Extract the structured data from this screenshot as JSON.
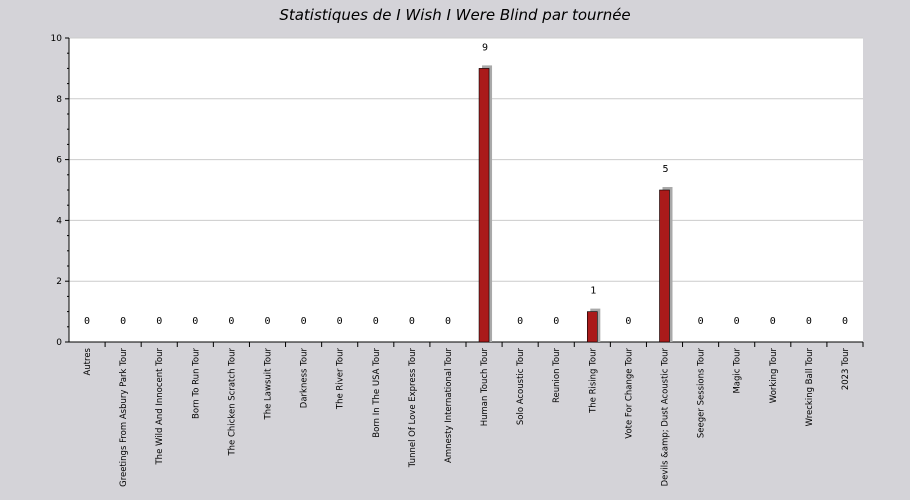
{
  "chart_data": {
    "type": "bar",
    "title": "Statistiques de I Wish I Were Blind par tournée",
    "xlabel": "",
    "ylabel": "",
    "ylim": [
      0,
      10
    ],
    "yticks": [
      0,
      2,
      4,
      6,
      8,
      10
    ],
    "grid": true,
    "categories": [
      "Autres",
      "Greetings From Asbury Park Tour",
      "The Wild And Innocent Tour",
      "Born To Run Tour",
      "The Chicken Scratch Tour",
      "The Lawsuit Tour",
      "Darkness Tour",
      "The River Tour",
      "Born In The USA Tour",
      "Tunnel Of Love Express Tour",
      "Amnesty International Tour",
      "Human Touch Tour",
      "Solo Acoustic Tour",
      "Reunion Tour",
      "The Rising Tour",
      "Vote For Change Tour",
      "Devils &amp; Dust Acoustic Tour",
      "Seeger Sessions Tour",
      "Magic Tour",
      "Working Tour",
      "Wrecking Ball Tour",
      "2023 Tour"
    ],
    "values": [
      0,
      0,
      0,
      0,
      0,
      0,
      0,
      0,
      0,
      0,
      0,
      9,
      0,
      0,
      1,
      0,
      5,
      0,
      0,
      0,
      0,
      0
    ],
    "colors": {
      "bar": "#aa1a1a",
      "bar_shadow": "#a9a9a9",
      "plot_background": "#ffffff",
      "page_background": "#d4d3d8",
      "grid": "#cccccc"
    }
  }
}
